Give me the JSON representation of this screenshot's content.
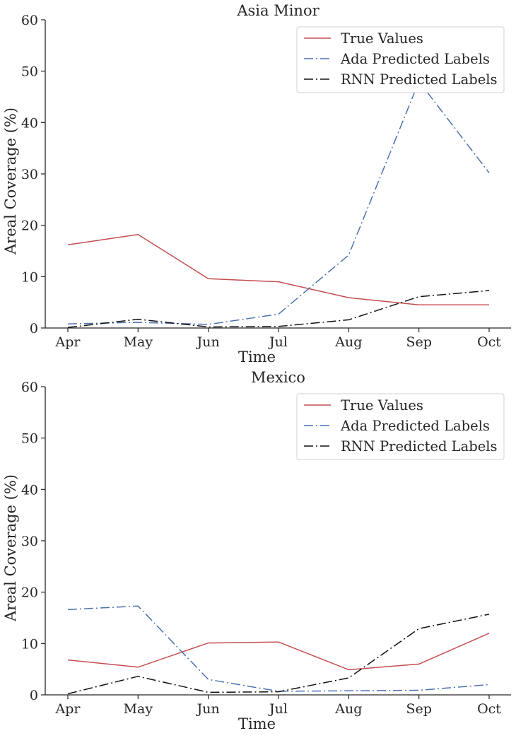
{
  "chart_data": [
    {
      "type": "line",
      "title": "Asia Minor",
      "xlabel": "Time",
      "ylabel": "Areal Coverage (%)",
      "categories": [
        "Apr",
        "May",
        "Jun",
        "Jul",
        "Aug",
        "Sep",
        "Oct"
      ],
      "ylim": [
        0,
        60
      ],
      "yticks": [
        0,
        10,
        20,
        30,
        40,
        50,
        60
      ],
      "grid": false,
      "legend_position": "top-right",
      "series": [
        {
          "name": "True Values",
          "values": [
            16.2,
            18.2,
            9.6,
            9.0,
            5.9,
            4.5,
            4.5
          ],
          "color": "#c44e52",
          "style": "solid"
        },
        {
          "name": "Ada Predicted Labels",
          "values": [
            0.8,
            1.1,
            0.7,
            2.7,
            14.2,
            48.0,
            30.2
          ],
          "color": "#4c72b0",
          "style": "dashdot"
        },
        {
          "name": "RNN Predicted Labels",
          "values": [
            0.1,
            1.7,
            0.2,
            0.3,
            1.6,
            6.1,
            7.3
          ],
          "color": "#111111",
          "style": "dashdot"
        }
      ]
    },
    {
      "type": "line",
      "title": "Mexico",
      "xlabel": "Time",
      "ylabel": "Areal Coverage (%)",
      "categories": [
        "Apr",
        "May",
        "Jun",
        "Jul",
        "Aug",
        "Sep",
        "Oct"
      ],
      "ylim": [
        0,
        60
      ],
      "yticks": [
        0,
        10,
        20,
        30,
        40,
        50,
        60
      ],
      "grid": false,
      "legend_position": "top-right",
      "series": [
        {
          "name": "True Values",
          "values": [
            6.8,
            5.4,
            10.1,
            10.3,
            4.9,
            6.0,
            12.0
          ],
          "color": "#c44e52",
          "style": "solid"
        },
        {
          "name": "Ada Predicted Labels",
          "values": [
            16.6,
            17.3,
            3.0,
            0.7,
            0.8,
            0.9,
            2.0
          ],
          "color": "#4c72b0",
          "style": "dashdot"
        },
        {
          "name": "RNN Predicted Labels",
          "values": [
            0.2,
            3.6,
            0.5,
            0.6,
            3.3,
            12.9,
            15.7
          ],
          "color": "#111111",
          "style": "dashdot"
        }
      ]
    }
  ]
}
